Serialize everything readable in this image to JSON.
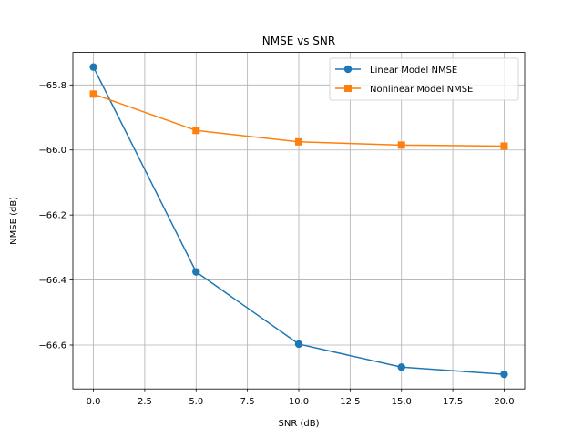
{
  "chart_data": {
    "type": "line",
    "title": "NMSE vs SNR",
    "xlabel": "SNR (dB)",
    "ylabel": "NMSE (dB)",
    "x": [
      0,
      5,
      10,
      15,
      20
    ],
    "xlim": [
      -1,
      21
    ],
    "ylim": [
      -66.735,
      -65.7
    ],
    "xticks": [
      0.0,
      2.5,
      5.0,
      7.5,
      10.0,
      12.5,
      15.0,
      17.5,
      20.0
    ],
    "xtick_labels": [
      "0.0",
      "2.5",
      "5.0",
      "7.5",
      "10.0",
      "12.5",
      "15.0",
      "17.5",
      "20.0"
    ],
    "yticks": [
      -65.8,
      -66.0,
      -66.2,
      -66.4,
      -66.6
    ],
    "ytick_labels": [
      "−65.8",
      "−66.0",
      "−66.2",
      "−66.4",
      "−66.6"
    ],
    "grid": true,
    "legend_position": "top-right",
    "series": [
      {
        "name": "Linear Model NMSE",
        "values": [
          -65.745,
          -66.375,
          -66.597,
          -66.668,
          -66.69
        ],
        "color": "#1f77b4",
        "marker": "circle"
      },
      {
        "name": "Nonlinear Model NMSE",
        "values": [
          -65.828,
          -65.94,
          -65.975,
          -65.985,
          -65.988
        ],
        "color": "#ff7f0e",
        "marker": "square"
      }
    ]
  }
}
